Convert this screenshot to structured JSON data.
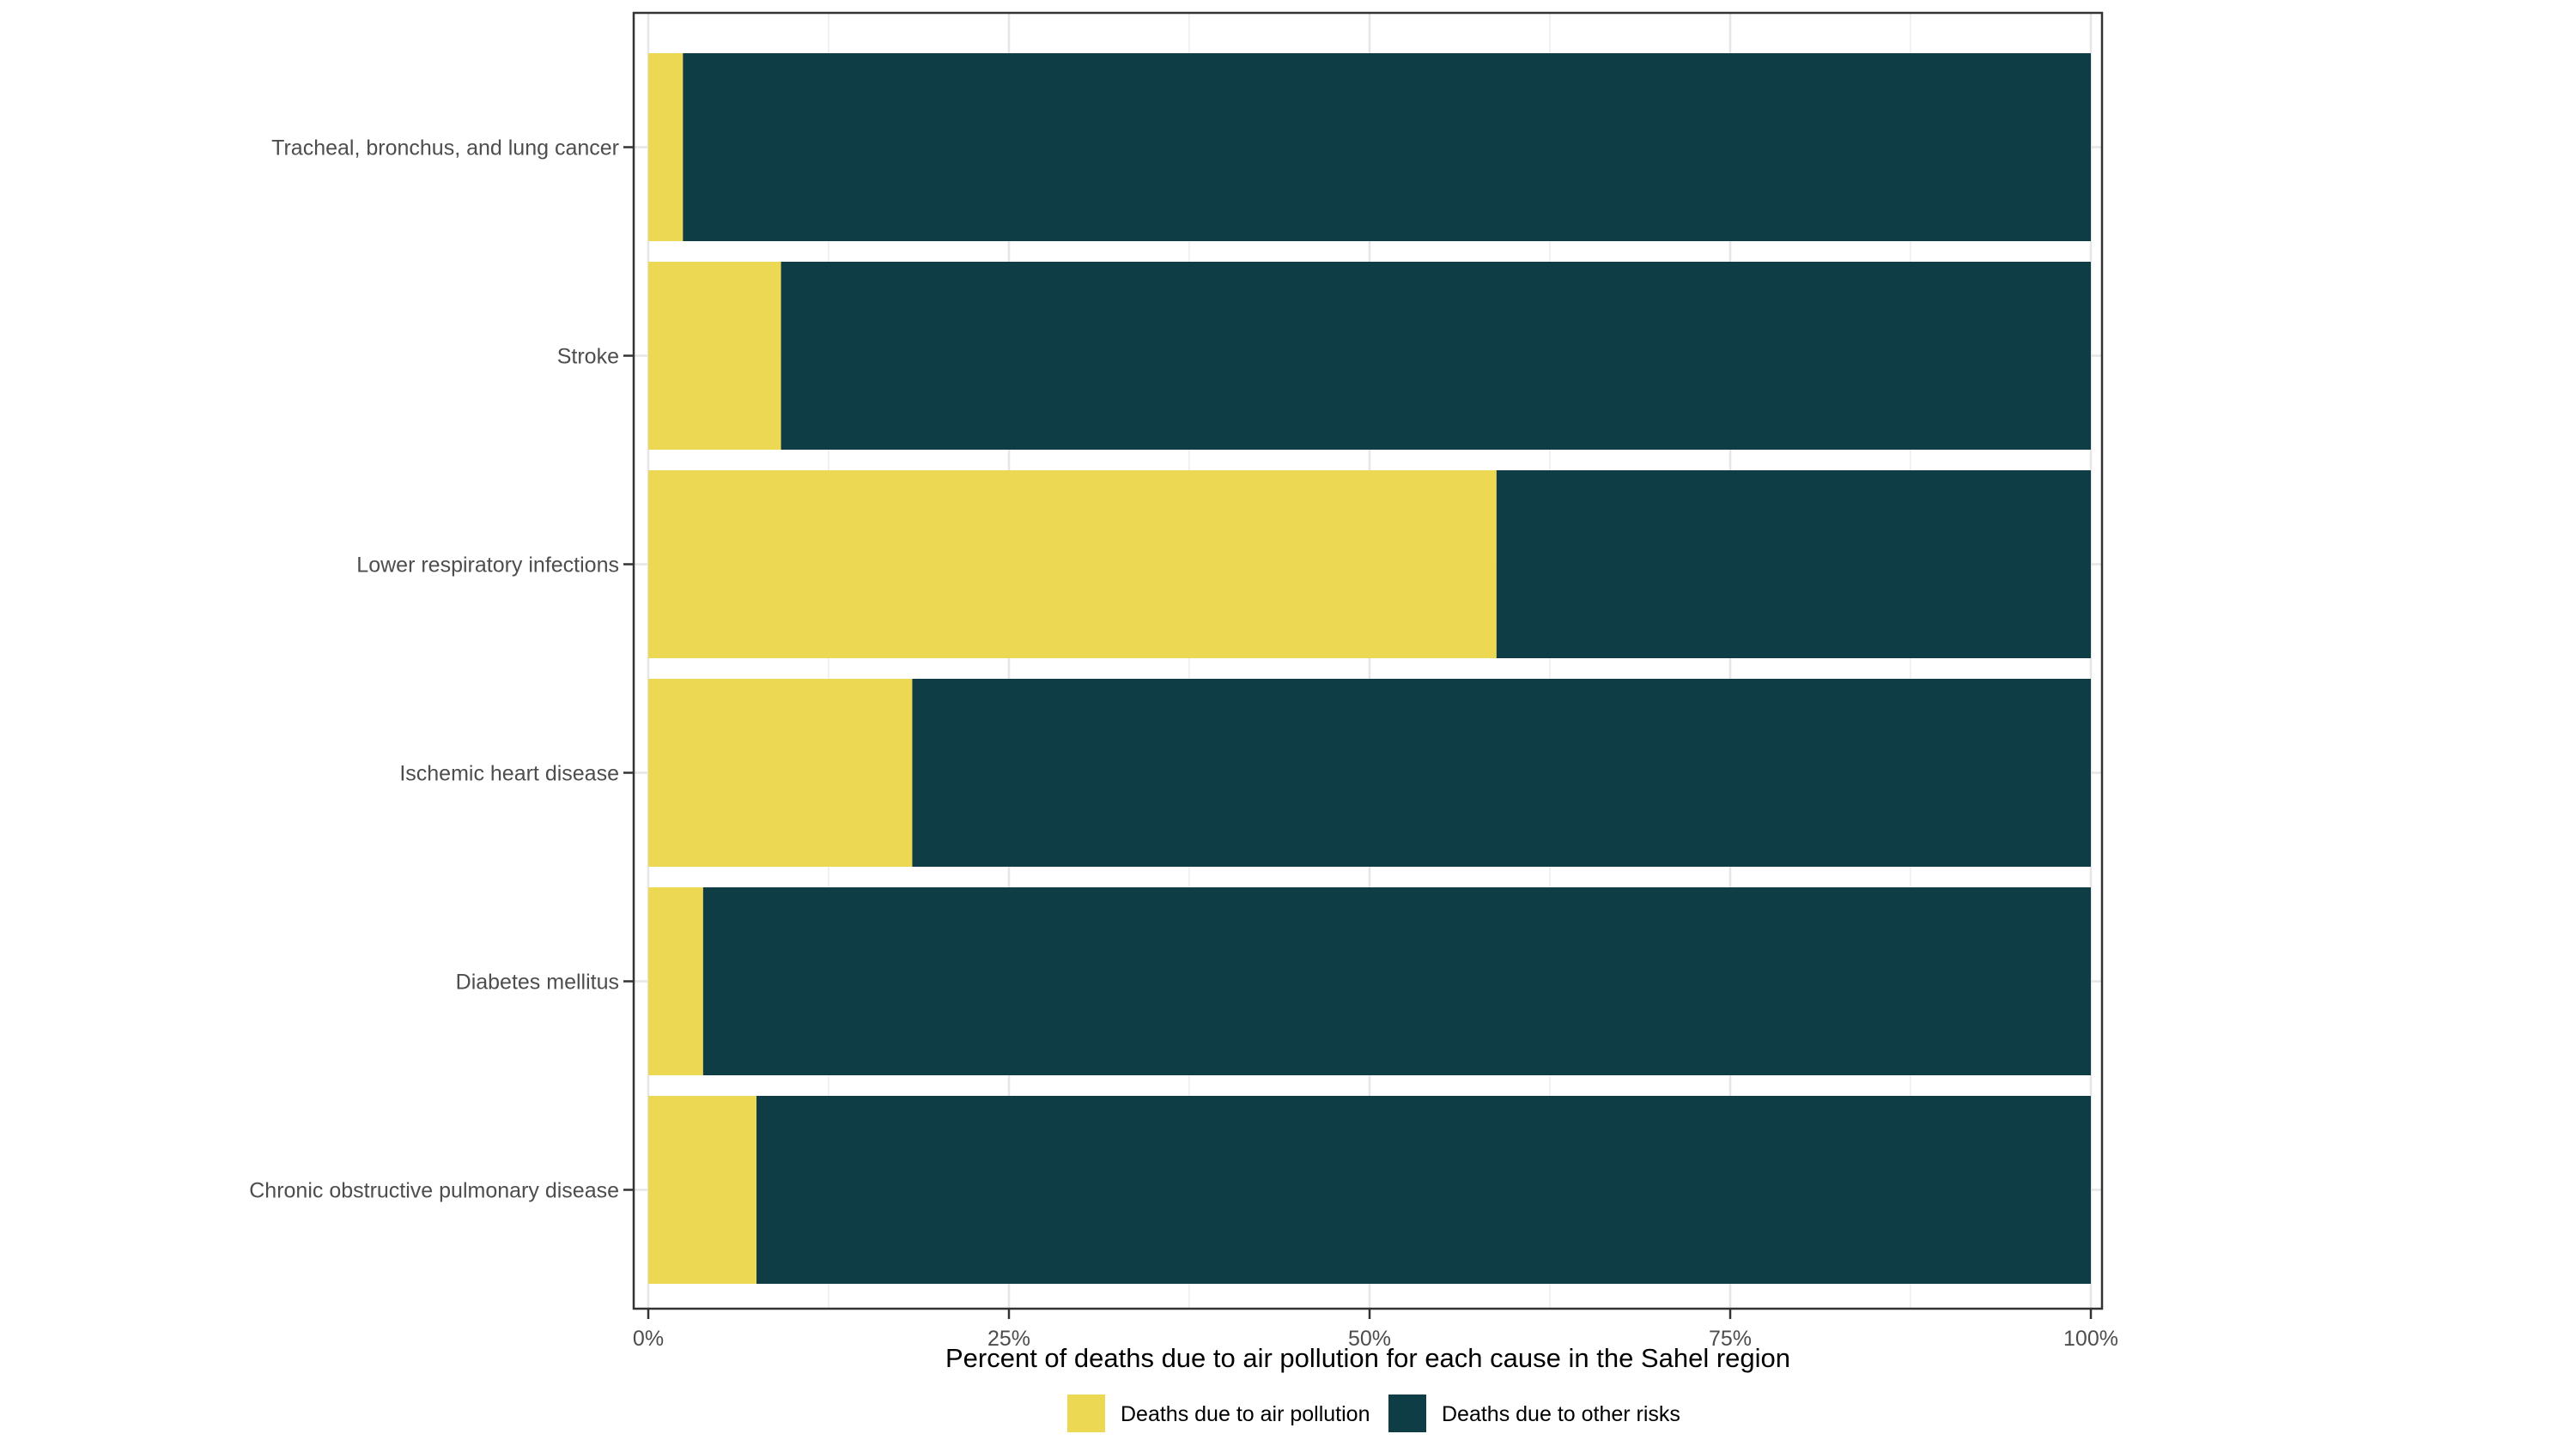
{
  "colors": {
    "air_pollution": "#EDD853",
    "other_risks": "#0F3D45",
    "grid_major": "#E6E6E6",
    "grid_minor": "#F1F1F1",
    "panel_border": "#333333",
    "axis_text": "#4D4D4D",
    "title_text": "#000000"
  },
  "chart_data": {
    "type": "bar",
    "orientation": "horizontal",
    "stacked": true,
    "categories": [
      "Tracheal, bronchus, and lung cancer",
      "Stroke",
      "Lower respiratory infections",
      "Ischemic heart disease",
      "Diabetes mellitus",
      "Chronic obstructive pulmonary disease"
    ],
    "series": [
      {
        "name": "Deaths due to air pollution",
        "color": "#EDD853",
        "values": [
          2.4,
          9.2,
          58.8,
          18.3,
          3.8,
          7.5
        ]
      },
      {
        "name": "Deaths due to other risks",
        "color": "#0F3D45",
        "values": [
          97.6,
          90.8,
          41.2,
          81.7,
          96.2,
          92.5
        ]
      }
    ],
    "xlim": [
      0,
      100
    ],
    "x_ticks": [
      0,
      25,
      50,
      75,
      100
    ],
    "x_tick_labels": [
      "0%",
      "25%",
      "50%",
      "75%",
      "100%"
    ],
    "xlabel": "Percent of deaths due to air pollution for each cause in the Sahel region",
    "ylabel": "",
    "title": "",
    "grid": true,
    "legend_position": "bottom"
  }
}
